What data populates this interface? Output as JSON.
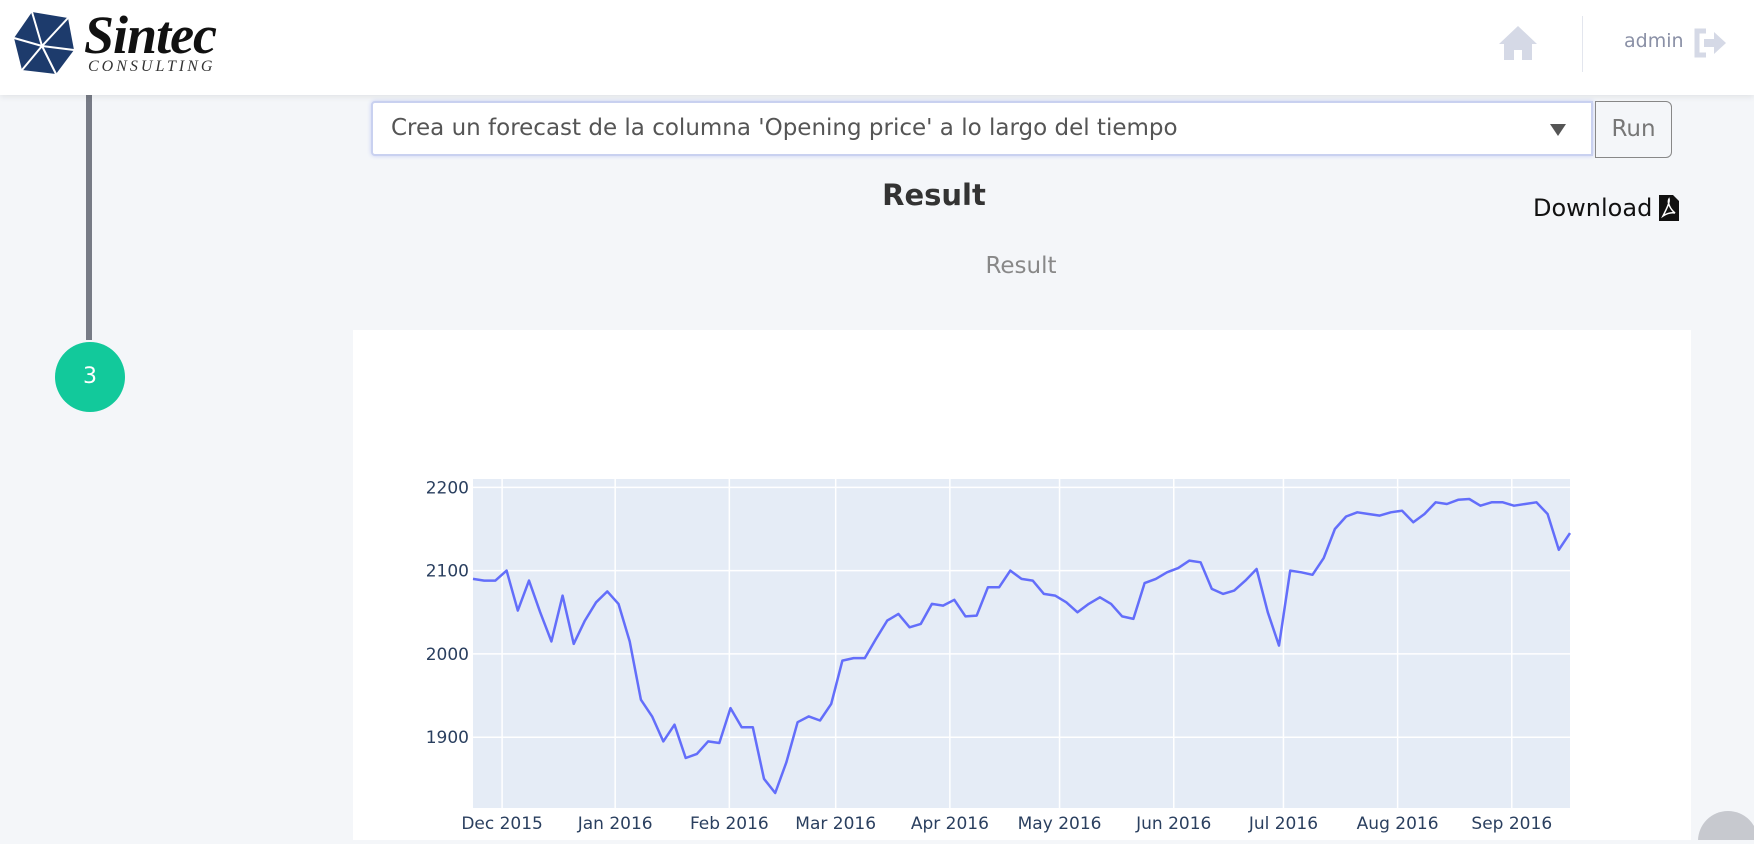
{
  "header": {
    "brand": "Sintec",
    "brand_sub": "CONSULTING",
    "user": "admin"
  },
  "step": {
    "number": 3
  },
  "query": {
    "text": "Crea un forecast de la columna 'Opening price' a lo largo del tiempo",
    "button": "Run"
  },
  "result": {
    "title": "Result",
    "download": "Download",
    "subtitle": "Result"
  },
  "chart_data": {
    "type": "line",
    "color": "#636efa",
    "values": [
      2090,
      2088,
      2088,
      2100,
      2052,
      2088,
      2050,
      2015,
      2070,
      2012,
      2040,
      2062,
      2075,
      2060,
      2015,
      1945,
      1925,
      1895,
      1915,
      1875,
      1880,
      1895,
      1893,
      1935,
      1912,
      1912,
      1850,
      1833,
      1870,
      1918,
      1925,
      1920,
      1940,
      1992,
      1995,
      1995,
      2018,
      2040,
      2048,
      2032,
      2036,
      2060,
      2058,
      2065,
      2045,
      2046,
      2080,
      2080,
      2100,
      2090,
      2088,
      2072,
      2070,
      2062,
      2050,
      2060,
      2068,
      2060,
      2045,
      2042,
      2085,
      2090,
      2098,
      2103,
      2112,
      2110,
      2078,
      2072,
      2076,
      2088,
      2102,
      2050,
      2010,
      2100,
      2098,
      2095,
      2115,
      2150,
      2165,
      2170,
      2168,
      2166,
      2170,
      2172,
      2158,
      2168,
      2182,
      2180,
      2185,
      2186,
      2178,
      2182,
      2182,
      2178,
      2180,
      2182,
      2168,
      2125,
      2145
    ],
    "xlim": [
      0,
      98
    ],
    "xticks": [
      {
        "value": 2.6,
        "label": "Dec 2015"
      },
      {
        "value": 12.7,
        "label": "Jan 2016"
      },
      {
        "value": 22.9,
        "label": "Feb 2016"
      },
      {
        "value": 32.4,
        "label": "Mar 2016"
      },
      {
        "value": 42.6,
        "label": "Apr 2016"
      },
      {
        "value": 52.4,
        "label": "May 2016"
      },
      {
        "value": 62.6,
        "label": "Jun 2016"
      },
      {
        "value": 72.4,
        "label": "Jul 2016"
      },
      {
        "value": 82.6,
        "label": "Aug 2016"
      },
      {
        "value": 92.8,
        "label": "Sep 2016"
      }
    ],
    "ylim": [
      1815,
      2210
    ],
    "yticks": [
      1900,
      2000,
      2100,
      2200
    ],
    "grid": true
  }
}
